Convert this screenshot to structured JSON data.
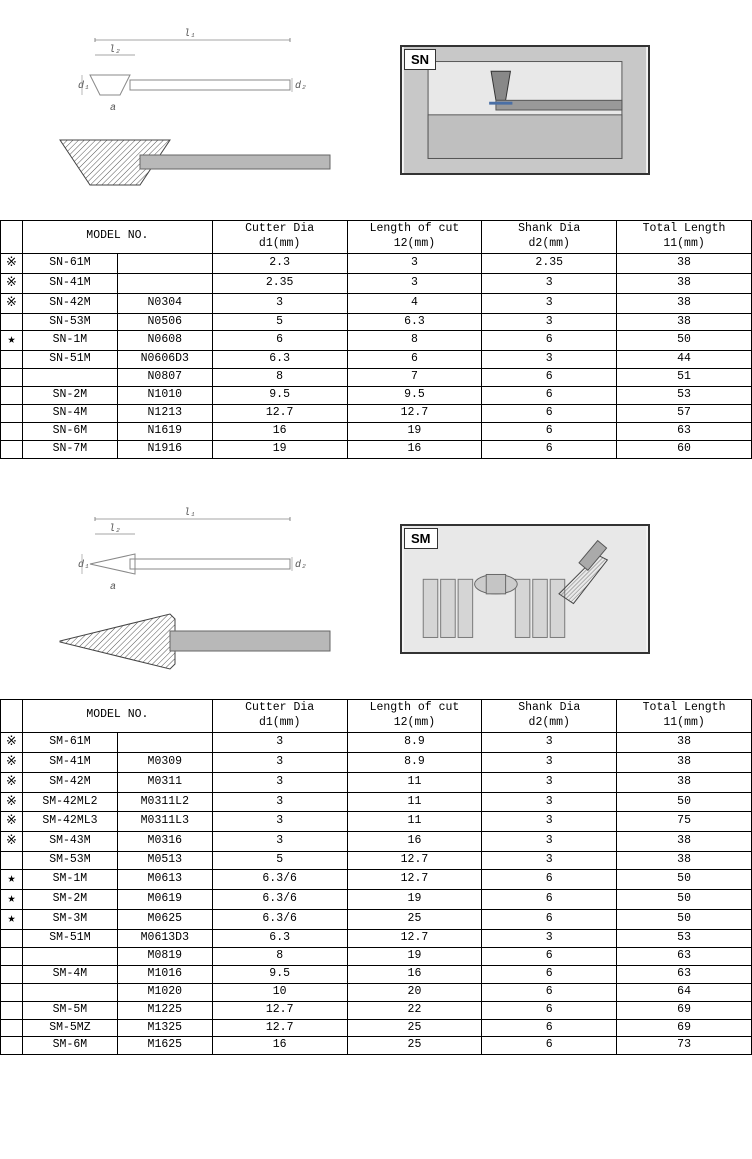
{
  "sections": [
    {
      "label": "SN",
      "shape": "inverted_cone",
      "table": {
        "headers": {
          "model": "MODEL NO.",
          "cutter": "Cutter Dia\nd1(mm)",
          "length": "Length of cut\n12(mm)",
          "shank": "Shank Dia\nd2(mm)",
          "total": "Total Length\n11(mm)"
        },
        "rows": [
          {
            "sym": "※",
            "model": "SN-61M",
            "code": "",
            "d1": "2.3",
            "l2": "3",
            "d2": "2.35",
            "l1": "38"
          },
          {
            "sym": "※",
            "model": "SN-41M",
            "code": "",
            "d1": "2.35",
            "l2": "3",
            "d2": "3",
            "l1": "38"
          },
          {
            "sym": "※",
            "model": "SN-42M",
            "code": "N0304",
            "d1": "3",
            "l2": "4",
            "d2": "3",
            "l1": "38"
          },
          {
            "sym": "",
            "model": "SN-53M",
            "code": "N0506",
            "d1": "5",
            "l2": "6.3",
            "d2": "3",
            "l1": "38"
          },
          {
            "sym": "★",
            "model": "SN-1M",
            "code": "N0608",
            "d1": "6",
            "l2": "8",
            "d2": "6",
            "l1": "50"
          },
          {
            "sym": "",
            "model": "SN-51M",
            "code": "N0606D3",
            "d1": "6.3",
            "l2": "6",
            "d2": "3",
            "l1": "44"
          },
          {
            "sym": "",
            "model": "",
            "code": "N0807",
            "d1": "8",
            "l2": "7",
            "d2": "6",
            "l1": "51"
          },
          {
            "sym": "",
            "model": "SN-2M",
            "code": "N1010",
            "d1": "9.5",
            "l2": "9.5",
            "d2": "6",
            "l1": "53"
          },
          {
            "sym": "",
            "model": "SN-4M",
            "code": "N1213",
            "d1": "12.7",
            "l2": "12.7",
            "d2": "6",
            "l1": "57"
          },
          {
            "sym": "",
            "model": "SN-6M",
            "code": "N1619",
            "d1": "16",
            "l2": "19",
            "d2": "6",
            "l1": "63"
          },
          {
            "sym": "",
            "model": "SN-7M",
            "code": "N1916",
            "d1": "19",
            "l2": "16",
            "d2": "6",
            "l1": "60"
          }
        ]
      }
    },
    {
      "label": "SM",
      "shape": "cone",
      "table": {
        "headers": {
          "model": "MODEL NO.",
          "cutter": "Cutter Dia\nd1(mm)",
          "length": "Length of cut\n12(mm)",
          "shank": "Shank Dia\nd2(mm)",
          "total": "Total Length\n11(mm)"
        },
        "rows": [
          {
            "sym": "※",
            "model": "SM-61M",
            "code": "",
            "d1": "3",
            "l2": "8.9",
            "d2": "3",
            "l1": "38"
          },
          {
            "sym": "※",
            "model": "SM-41M",
            "code": "M0309",
            "d1": "3",
            "l2": "8.9",
            "d2": "3",
            "l1": "38"
          },
          {
            "sym": "※",
            "model": "SM-42M",
            "code": "M0311",
            "d1": "3",
            "l2": "11",
            "d2": "3",
            "l1": "38"
          },
          {
            "sym": "※",
            "model": "SM-42ML2",
            "code": "M0311L2",
            "d1": "3",
            "l2": "11",
            "d2": "3",
            "l1": "50"
          },
          {
            "sym": "※",
            "model": "SM-42ML3",
            "code": "M0311L3",
            "d1": "3",
            "l2": "11",
            "d2": "3",
            "l1": "75"
          },
          {
            "sym": "※",
            "model": "SM-43M",
            "code": "M0316",
            "d1": "3",
            "l2": "16",
            "d2": "3",
            "l1": "38"
          },
          {
            "sym": "",
            "model": "SM-53M",
            "code": "M0513",
            "d1": "5",
            "l2": "12.7",
            "d2": "3",
            "l1": "38"
          },
          {
            "sym": "★",
            "model": "SM-1M",
            "code": "M0613",
            "d1": "6.3/6",
            "l2": "12.7",
            "d2": "6",
            "l1": "50"
          },
          {
            "sym": "★",
            "model": "SM-2M",
            "code": "M0619",
            "d1": "6.3/6",
            "l2": "19",
            "d2": "6",
            "l1": "50"
          },
          {
            "sym": "★",
            "model": "SM-3M",
            "code": "M0625",
            "d1": "6.3/6",
            "l2": "25",
            "d2": "6",
            "l1": "50"
          },
          {
            "sym": "",
            "model": "SM-51M",
            "code": "M0613D3",
            "d1": "6.3",
            "l2": "12.7",
            "d2": "3",
            "l1": "53"
          },
          {
            "sym": "",
            "model": "",
            "code": "M0819",
            "d1": "8",
            "l2": "19",
            "d2": "6",
            "l1": "63"
          },
          {
            "sym": "",
            "model": "SM-4M",
            "code": "M1016",
            "d1": "9.5",
            "l2": "16",
            "d2": "6",
            "l1": "63"
          },
          {
            "sym": "",
            "model": "",
            "code": "M1020",
            "d1": "10",
            "l2": "20",
            "d2": "6",
            "l1": "64"
          },
          {
            "sym": "",
            "model": "SM-5M",
            "code": "M1225",
            "d1": "12.7",
            "l2": "22",
            "d2": "6",
            "l1": "69"
          },
          {
            "sym": "",
            "model": "SM-5MZ",
            "code": "M1325",
            "d1": "12.7",
            "l2": "25",
            "d2": "6",
            "l1": "69"
          },
          {
            "sym": "",
            "model": "SM-6M",
            "code": "M1625",
            "d1": "16",
            "l2": "25",
            "d2": "6",
            "l1": "73"
          }
        ]
      }
    }
  ],
  "diagram_labels": {
    "l1": "l₁",
    "l2": "l₂",
    "d1": "d₁",
    "d2": "d₂",
    "a": "a"
  },
  "colors": {
    "border": "#000000",
    "diagram_stroke": "#888888",
    "diagram_blue": "#5b7ba8",
    "usage_bg": "#d0d0d0",
    "tool_gray": "#9a9a9a"
  }
}
